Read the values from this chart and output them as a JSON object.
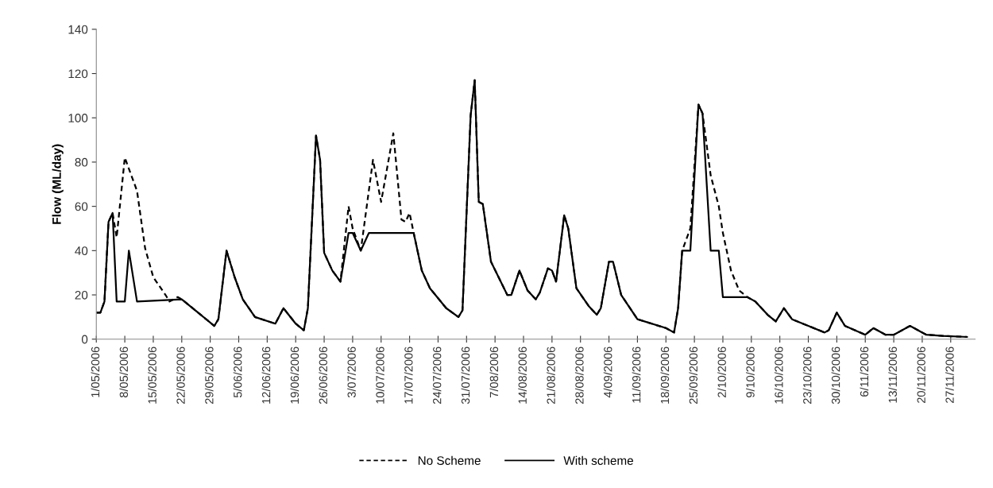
{
  "chart_data": {
    "type": "line",
    "ylabel": "Flow (ML/day)",
    "xlim": [
      "2006-05-01",
      "2006-12-03"
    ],
    "ylim": [
      0,
      140
    ],
    "yticks": [
      0,
      20,
      40,
      60,
      80,
      100,
      120,
      140
    ],
    "xticks": [
      {
        "value": "2006-05-01",
        "label": "1/05/2006"
      },
      {
        "value": "2006-05-08",
        "label": "8/05/2006"
      },
      {
        "value": "2006-05-15",
        "label": "15/05/2006"
      },
      {
        "value": "2006-05-22",
        "label": "22/05/2006"
      },
      {
        "value": "2006-05-29",
        "label": "29/05/2006"
      },
      {
        "value": "2006-06-05",
        "label": "5/06/2006"
      },
      {
        "value": "2006-06-12",
        "label": "12/06/2006"
      },
      {
        "value": "2006-06-19",
        "label": "19/06/2006"
      },
      {
        "value": "2006-06-26",
        "label": "26/06/2006"
      },
      {
        "value": "2006-07-03",
        "label": "3/07/2006"
      },
      {
        "value": "2006-07-10",
        "label": "10/07/2006"
      },
      {
        "value": "2006-07-17",
        "label": "17/07/2006"
      },
      {
        "value": "2006-07-24",
        "label": "24/07/2006"
      },
      {
        "value": "2006-07-31",
        "label": "31/07/2006"
      },
      {
        "value": "2006-08-07",
        "label": "7/08/2006"
      },
      {
        "value": "2006-08-14",
        "label": "14/08/2006"
      },
      {
        "value": "2006-08-21",
        "label": "21/08/2006"
      },
      {
        "value": "2006-08-28",
        "label": "28/08/2006"
      },
      {
        "value": "2006-09-04",
        "label": "4/09/2006"
      },
      {
        "value": "2006-09-11",
        "label": "11/09/2006"
      },
      {
        "value": "2006-09-18",
        "label": "18/09/2006"
      },
      {
        "value": "2006-09-25",
        "label": "25/09/2006"
      },
      {
        "value": "2006-10-02",
        "label": "2/10/2006"
      },
      {
        "value": "2006-10-09",
        "label": "9/10/2006"
      },
      {
        "value": "2006-10-16",
        "label": "16/10/2006"
      },
      {
        "value": "2006-10-23",
        "label": "23/10/2006"
      },
      {
        "value": "2006-10-30",
        "label": "30/10/2006"
      },
      {
        "value": "2006-11-06",
        "label": "6/11/2006"
      },
      {
        "value": "2006-11-13",
        "label": "13/11/2006"
      },
      {
        "value": "2006-11-20",
        "label": "20/11/2006"
      },
      {
        "value": "2006-11-27",
        "label": "27/11/2006"
      }
    ],
    "grid": false,
    "legend": "bottom",
    "marker": "none",
    "series": [
      {
        "name": "No Scheme",
        "color": "#000000",
        "line_style": "dashed",
        "x": [
          "2006-05-01",
          "2006-05-02",
          "2006-05-03",
          "2006-05-04",
          "2006-05-05",
          "2006-05-06",
          "2006-05-08",
          "2006-05-10",
          "2006-05-11",
          "2006-05-13",
          "2006-05-15",
          "2006-05-18",
          "2006-05-19",
          "2006-05-21",
          "2006-05-22",
          "2006-05-30",
          "2006-05-31",
          "2006-06-02",
          "2006-06-04",
          "2006-06-06",
          "2006-06-09",
          "2006-06-14",
          "2006-06-16",
          "2006-06-19",
          "2006-06-21",
          "2006-06-22",
          "2006-06-24",
          "2006-06-25",
          "2006-06-26",
          "2006-06-28",
          "2006-06-30",
          "2006-07-02",
          "2006-07-03",
          "2006-07-05",
          "2006-07-08",
          "2006-07-10",
          "2006-07-13",
          "2006-07-15",
          "2006-07-16",
          "2006-07-17",
          "2006-07-18",
          "2006-07-20",
          "2006-07-22",
          "2006-07-26",
          "2006-07-29",
          "2006-07-30",
          "2006-08-01",
          "2006-08-02",
          "2006-08-03",
          "2006-08-04",
          "2006-08-06",
          "2006-08-10",
          "2006-08-11",
          "2006-08-13",
          "2006-08-15",
          "2006-08-17",
          "2006-08-18",
          "2006-08-20",
          "2006-08-21",
          "2006-08-22",
          "2006-08-24",
          "2006-08-25",
          "2006-08-27",
          "2006-08-30",
          "2006-09-01",
          "2006-09-02",
          "2006-09-04",
          "2006-09-05",
          "2006-09-07",
          "2006-09-11",
          "2006-09-18",
          "2006-09-20",
          "2006-09-21",
          "2006-09-22",
          "2006-09-24",
          "2006-09-26",
          "2006-09-27",
          "2006-09-29",
          "2006-10-01",
          "2006-10-02",
          "2006-10-04",
          "2006-10-06",
          "2006-10-08",
          "2006-10-10",
          "2006-10-13",
          "2006-10-15",
          "2006-10-17",
          "2006-10-19",
          "2006-10-23",
          "2006-10-27",
          "2006-10-28",
          "2006-10-30",
          "2006-11-01",
          "2006-11-06",
          "2006-11-08",
          "2006-11-11",
          "2006-11-13",
          "2006-11-17",
          "2006-11-21",
          "2006-11-25",
          "2006-12-01"
        ],
        "values": [
          12,
          12,
          17,
          53,
          57,
          46,
          82,
          72,
          67,
          41,
          28,
          20,
          17,
          19,
          18,
          6,
          9,
          40,
          28,
          18,
          10,
          7,
          14,
          7,
          4,
          14,
          92,
          81,
          39,
          31,
          26,
          60,
          50,
          40,
          81,
          62,
          93,
          54,
          53,
          57,
          48,
          31,
          23,
          14,
          10,
          13,
          101,
          117,
          62,
          61,
          35,
          20,
          20,
          31,
          22,
          18,
          21,
          32,
          31,
          26,
          56,
          50,
          23,
          15,
          11,
          14,
          35,
          35,
          20,
          9,
          5,
          3,
          14,
          40,
          50,
          106,
          102,
          74,
          60,
          48,
          31,
          22,
          19,
          17,
          11,
          8,
          14,
          9,
          6,
          3,
          4,
          12,
          6,
          2,
          5,
          2,
          2,
          6,
          2,
          1.5,
          1
        ]
      },
      {
        "name": "With scheme",
        "color": "#000000",
        "line_style": "solid",
        "x": [
          "2006-05-01",
          "2006-05-02",
          "2006-05-03",
          "2006-05-04",
          "2006-05-05",
          "2006-05-06",
          "2006-05-08",
          "2006-05-09",
          "2006-05-11",
          "2006-05-22",
          "2006-05-30",
          "2006-05-31",
          "2006-06-02",
          "2006-06-04",
          "2006-06-06",
          "2006-06-09",
          "2006-06-14",
          "2006-06-16",
          "2006-06-19",
          "2006-06-21",
          "2006-06-22",
          "2006-06-24",
          "2006-06-25",
          "2006-06-26",
          "2006-06-28",
          "2006-06-30",
          "2006-07-02",
          "2006-07-03",
          "2006-07-05",
          "2006-07-07",
          "2006-07-18",
          "2006-07-20",
          "2006-07-22",
          "2006-07-26",
          "2006-07-29",
          "2006-07-30",
          "2006-08-01",
          "2006-08-02",
          "2006-08-03",
          "2006-08-04",
          "2006-08-06",
          "2006-08-10",
          "2006-08-11",
          "2006-08-13",
          "2006-08-15",
          "2006-08-17",
          "2006-08-18",
          "2006-08-20",
          "2006-08-21",
          "2006-08-22",
          "2006-08-24",
          "2006-08-25",
          "2006-08-27",
          "2006-08-30",
          "2006-09-01",
          "2006-09-02",
          "2006-09-04",
          "2006-09-05",
          "2006-09-07",
          "2006-09-11",
          "2006-09-18",
          "2006-09-20",
          "2006-09-21",
          "2006-09-22",
          "2006-09-24",
          "2006-09-26",
          "2006-09-27",
          "2006-09-29",
          "2006-10-01",
          "2006-10-02",
          "2006-10-08",
          "2006-10-10",
          "2006-10-13",
          "2006-10-15",
          "2006-10-17",
          "2006-10-19",
          "2006-10-23",
          "2006-10-27",
          "2006-10-28",
          "2006-10-30",
          "2006-11-01",
          "2006-11-06",
          "2006-11-08",
          "2006-11-11",
          "2006-11-13",
          "2006-11-17",
          "2006-11-21",
          "2006-11-25",
          "2006-12-01"
        ],
        "values": [
          12,
          12,
          17,
          53,
          57,
          17,
          17,
          40,
          17,
          18,
          6,
          9,
          40,
          28,
          18,
          10,
          7,
          14,
          7,
          4,
          14,
          92,
          81,
          39,
          31,
          26,
          48,
          48,
          40,
          48,
          48,
          31,
          23,
          14,
          10,
          13,
          101,
          117,
          62,
          61,
          35,
          20,
          20,
          31,
          22,
          18,
          21,
          32,
          31,
          26,
          56,
          50,
          23,
          15,
          11,
          14,
          35,
          35,
          20,
          9,
          5,
          3,
          14,
          40,
          40,
          106,
          102,
          40,
          40,
          19,
          19,
          17,
          11,
          8,
          14,
          9,
          6,
          3,
          4,
          12,
          6,
          2,
          5,
          2,
          2,
          6,
          2,
          1.5,
          1
        ]
      }
    ]
  }
}
